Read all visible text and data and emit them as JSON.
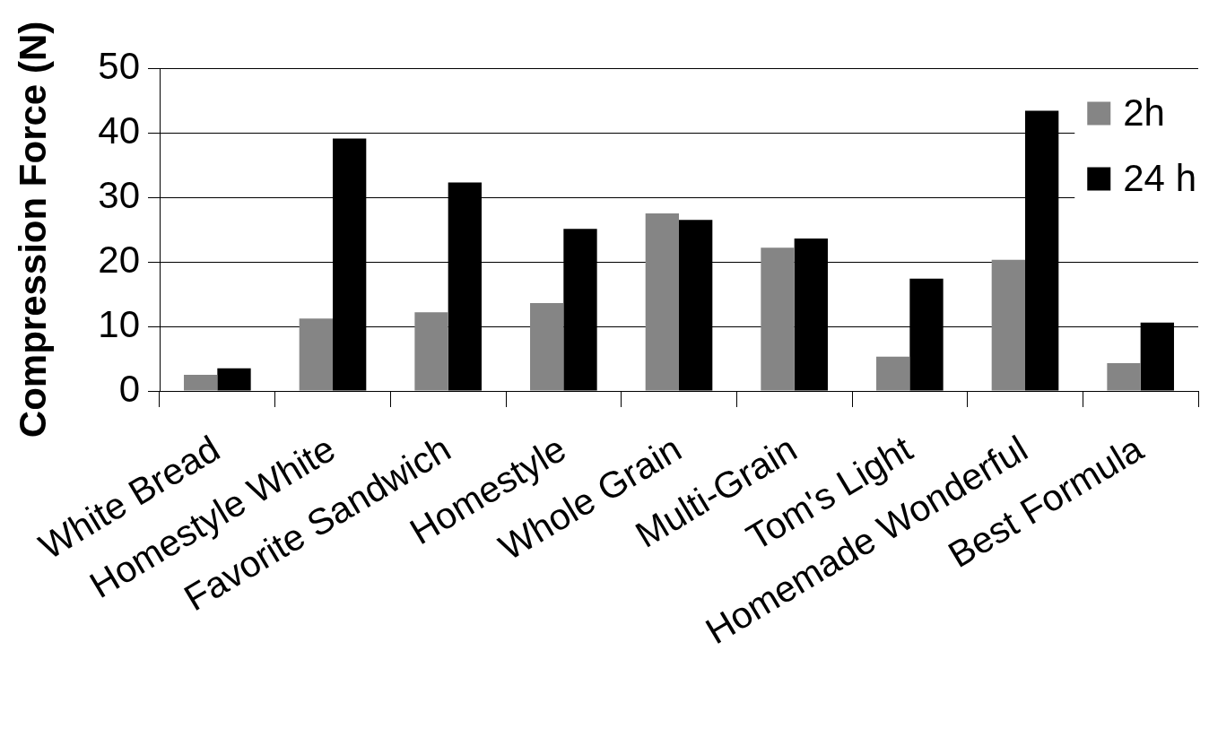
{
  "chart_data": {
    "type": "bar",
    "ylabel": "Compression Force (N)",
    "categories": [
      "White Bread",
      "Homestyle White",
      "Favorite Sandwich",
      "Homestyle",
      "Whole Grain",
      "Multi-Grain",
      "Tom's Light",
      "Homemade Wonderful",
      "Best Formula"
    ],
    "series": [
      {
        "name": "2h",
        "color": "#858585",
        "values": [
          2.5,
          11.2,
          12.2,
          13.6,
          27.5,
          22.2,
          5.3,
          20.3,
          4.3
        ]
      },
      {
        "name": "24 h",
        "color": "#000000",
        "values": [
          3.5,
          39.1,
          32.3,
          25.1,
          26.5,
          23.6,
          17.4,
          43.4,
          10.6
        ]
      }
    ],
    "ylim": [
      0,
      50
    ],
    "yticks": [
      0,
      10,
      20,
      30,
      40,
      50
    ],
    "grid": "y",
    "legend": "top right"
  }
}
